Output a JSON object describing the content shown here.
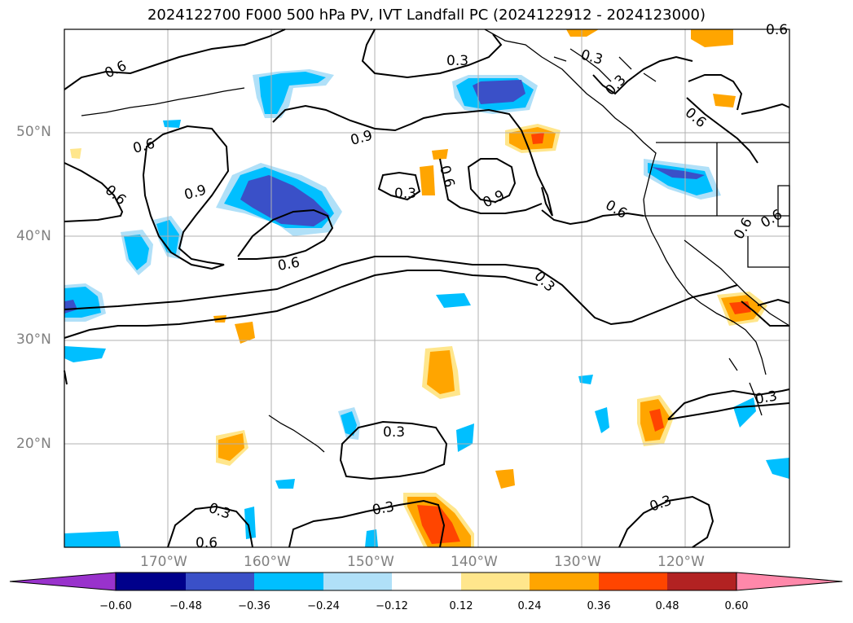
{
  "title": "2024122700 F000 500 hPa PV, IVT Landfall PC (2024122912 - 2024123000)",
  "lat_labels": [
    "50°N",
    "40°N",
    "30°N",
    "20°N"
  ],
  "lon_labels": [
    "170°W",
    "160°W",
    "150°W",
    "140°W",
    "130°W",
    "120°W"
  ],
  "contour_labels": [
    "0.6",
    "0.3",
    "0.3",
    "0.3",
    "0.6",
    "0.9",
    "0.6",
    "0.9",
    "0.6",
    "0.3",
    "0.6",
    "0.9",
    "0.6",
    "0.6",
    "0.6",
    "0.3",
    "0.6",
    "0.3",
    "0.3",
    "0.3",
    "0.3",
    "0.3",
    "0.6",
    "0.6"
  ],
  "colorbar": {
    "ticks": [
      "−0.60",
      "−0.48",
      "−0.36",
      "−0.24",
      "−0.12",
      "0.12",
      "0.24",
      "0.36",
      "0.48",
      "0.60"
    ],
    "colors": [
      "#9932cc",
      "#00008b",
      "#3a50c8",
      "#00bfff",
      "#b0e0f8",
      "#ffffff",
      "#ffe68c",
      "#ffa500",
      "#ff4500",
      "#b22222",
      "#ff88aa"
    ]
  }
}
